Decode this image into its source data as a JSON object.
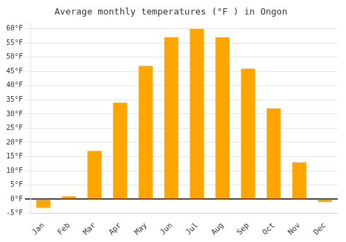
{
  "chart_data": {
    "type": "bar",
    "title": "Average monthly temperatures (°F ) in Ongon",
    "categories": [
      "Jan",
      "Feb",
      "Mar",
      "Apr",
      "May",
      "Jun",
      "Jul",
      "Aug",
      "Sep",
      "Oct",
      "Nov",
      "Dec"
    ],
    "values": [
      -3,
      1,
      17,
      34,
      47,
      57,
      60,
      57,
      46,
      32,
      13,
      -1
    ],
    "color": "#FFA500",
    "ylim": [
      -5,
      62
    ],
    "yticks": [
      {
        "value": -5,
        "label": "-5°F"
      },
      {
        "value": 0,
        "label": "0°F"
      },
      {
        "value": 5,
        "label": "5°F"
      },
      {
        "value": 10,
        "label": "10°F"
      },
      {
        "value": 15,
        "label": "15°F"
      },
      {
        "value": 20,
        "label": "20°F"
      },
      {
        "value": 25,
        "label": "25°F"
      },
      {
        "value": 30,
        "label": "30°F"
      },
      {
        "value": 35,
        "label": "35°F"
      },
      {
        "value": 40,
        "label": "40°F"
      },
      {
        "value": 45,
        "label": "45°F"
      },
      {
        "value": 50,
        "label": "50°F"
      },
      {
        "value": 55,
        "label": "55°F"
      },
      {
        "value": 60,
        "label": "60°F"
      }
    ],
    "grid": true
  }
}
